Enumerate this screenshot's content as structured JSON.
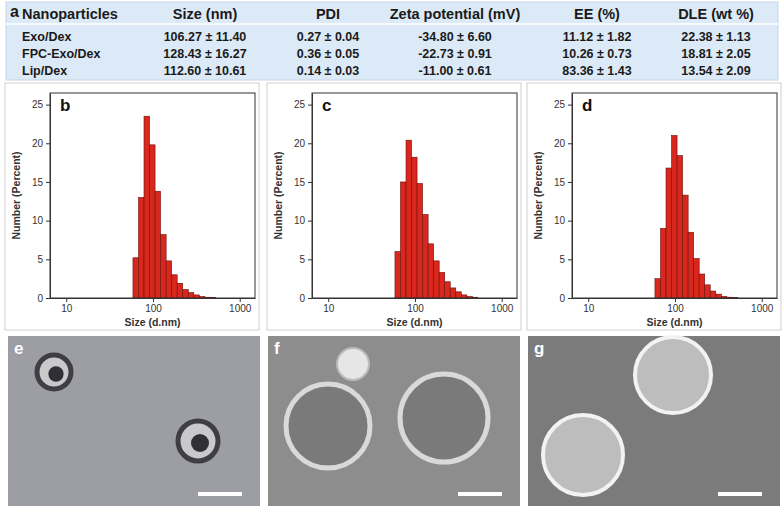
{
  "table": {
    "label": "a",
    "columns": [
      "Nanoparticles",
      "Size (nm)",
      "PDI",
      "Zeta potential (mV)",
      "EE (%)",
      "DLE (wt %)"
    ],
    "rows": [
      [
        "Exo/Dex",
        "106.27 ± 11.40",
        "0.27 ± 0.04",
        "-34.80 ± 6.60",
        "11.12 ± 1.82",
        "22.38 ± 1.13"
      ],
      [
        "FPC-Exo/Dex",
        "128.43 ± 16.27",
        "0.36 ± 0.05",
        "-22.73 ± 0.91",
        "10.26 ± 0.73",
        "18.81 ± 2.05"
      ],
      [
        "Lip/Dex",
        "112.60 ± 10.61",
        "0.14 ± 0.03",
        "-11.00 ± 0.61",
        "83.36 ± 1.43",
        "13.54 ± 2.09"
      ]
    ]
  },
  "chart_data": [
    {
      "type": "histogram",
      "title": "b",
      "x_label": "Size (d.nm)",
      "y_label": "Number (Percent)",
      "bins": [
        58.77,
        68.06,
        78.82,
        91.28,
        105.7,
        122.4,
        141.8,
        164.2,
        190.1,
        220.2,
        255.0,
        295.3,
        342.0,
        396.1,
        458.7,
        531.2
      ],
      "values": [
        5.2,
        13.0,
        23.5,
        19.8,
        13.8,
        8.2,
        4.8,
        3.0,
        1.9,
        1.1,
        0.7,
        0.4,
        0.2,
        0.1,
        0.05
      ],
      "color": "#d8281e",
      "log": "x",
      "xlim": [
        6.5,
        1500
      ],
      "xticks": [
        10,
        100,
        1000
      ],
      "ylim": [
        0,
        26.5
      ],
      "yticks": [
        0,
        5,
        10,
        15,
        20,
        25
      ]
    },
    {
      "type": "histogram",
      "title": "c",
      "x_label": "Size (d.nm)",
      "y_label": "Number (Percent)",
      "bins": [
        58.77,
        68.06,
        78.82,
        91.28,
        105.7,
        122.4,
        141.8,
        164.2,
        190.1,
        220.2,
        255.0,
        295.3,
        342.0,
        396.1,
        458.7,
        531.2
      ],
      "values": [
        6.0,
        15.0,
        20.4,
        18.2,
        14.8,
        10.8,
        7.0,
        4.8,
        3.3,
        2.1,
        1.3,
        0.8,
        0.4,
        0.2,
        0.1
      ],
      "color": "#d8281e",
      "log": "x",
      "xlim": [
        6.5,
        1500
      ],
      "xticks": [
        10,
        100,
        1000
      ],
      "ylim": [
        0,
        26.5
      ],
      "yticks": [
        0,
        5,
        10,
        15,
        20,
        25
      ]
    },
    {
      "type": "histogram",
      "title": "d",
      "x_label": "Size (d.nm)",
      "y_label": "Number (Percent)",
      "bins": [
        58.77,
        68.06,
        78.82,
        91.28,
        105.7,
        122.4,
        141.8,
        164.2,
        190.1,
        220.2,
        255.0,
        295.3,
        342.0,
        396.1,
        458.7,
        531.2
      ],
      "values": [
        2.5,
        9.0,
        16.8,
        21.0,
        18.4,
        13.3,
        8.5,
        5.1,
        3.1,
        1.7,
        0.9,
        0.5,
        0.2,
        0.1,
        0.05
      ],
      "color": "#d8281e",
      "log": "x",
      "xlim": [
        6.5,
        1500
      ],
      "xticks": [
        10,
        100,
        1000
      ],
      "ylim": [
        0,
        26.5
      ],
      "yticks": [
        0,
        5,
        10,
        15,
        20,
        25
      ]
    }
  ],
  "images": [
    {
      "label": "e"
    },
    {
      "label": "f"
    },
    {
      "label": "g"
    }
  ]
}
